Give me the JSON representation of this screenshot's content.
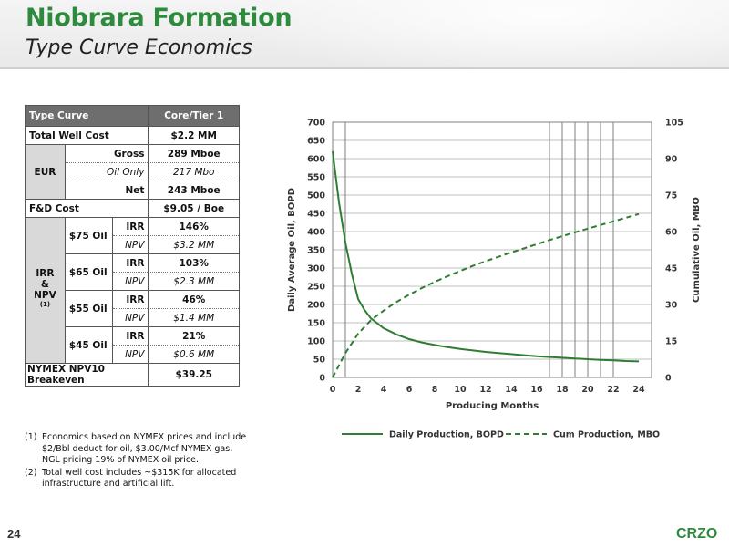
{
  "header": {
    "title": "Niobrara Formation",
    "subtitle": "Type Curve Economics"
  },
  "table": {
    "col1_header": "Type Curve",
    "col2_header": "Core/Tier 1",
    "total_well_cost_label": "Total Well Cost",
    "total_well_cost_value": "$2.2 MM",
    "eur_label": "EUR",
    "eur_rows": [
      {
        "label": "Gross",
        "value": "289 Mboe"
      },
      {
        "label": "Oil Only",
        "value": "217 Mbo"
      },
      {
        "label": "Net",
        "value": "243 Mboe"
      }
    ],
    "fd_label": "F&D Cost",
    "fd_value": "$9.05 / Boe",
    "irr_label_line1": "IRR",
    "irr_label_line2": "&",
    "irr_label_line3": "NPV",
    "irr_label_sup": "(1)",
    "irr_label": "IRR",
    "npv_label": "NPV",
    "scenarios": [
      {
        "price": "$75 Oil",
        "irr": "146%",
        "npv": "$3.2 MM"
      },
      {
        "price": "$65 Oil",
        "irr": "103%",
        "npv": "$2.3 MM"
      },
      {
        "price": "$55 Oil",
        "irr": "46%",
        "npv": "$1.4 MM"
      },
      {
        "price": "$45 Oil",
        "irr": "21%",
        "npv": "$0.6 MM"
      }
    ],
    "breakeven_label": "NYMEX NPV10 Breakeven",
    "breakeven_value": "$39.25"
  },
  "notes": [
    {
      "num": "(1)",
      "text": "Economics based on NYMEX prices and include $2/Bbl deduct for oil, $3.00/Mcf NYMEX gas, NGL pricing 19% of NYMEX oil price."
    },
    {
      "num": "(2)",
      "text": "Total well cost includes ~$315K for allocated infrastructure and artificial lift."
    }
  ],
  "chart_data": {
    "type": "line",
    "title": "",
    "xlabel": "Producing Months",
    "ylabel": "Daily Average Oil, BOPD",
    "y2label": "Cumulative Oil, MBO",
    "xlim": [
      0,
      25
    ],
    "xticks": [
      0,
      2,
      4,
      6,
      8,
      10,
      12,
      14,
      16,
      18,
      20,
      22,
      24
    ],
    "ylim": [
      0,
      700
    ],
    "yticks": [
      0,
      50,
      100,
      150,
      200,
      250,
      300,
      350,
      400,
      450,
      500,
      550,
      600,
      650,
      700
    ],
    "y2lim": [
      0,
      105
    ],
    "y2ticks": [
      0,
      15,
      30,
      45,
      60,
      75,
      90,
      105
    ],
    "vertical_lines_x": [
      1,
      17,
      18,
      19,
      20,
      21,
      22
    ],
    "legend_position": "bottom",
    "series": [
      {
        "name": "Daily Production, BOPD",
        "axis": "left",
        "style": "solid",
        "color": "#2e7d32",
        "x": [
          0,
          0.5,
          1,
          1.5,
          2,
          2.5,
          3,
          4,
          5,
          6,
          7,
          8,
          9,
          10,
          11,
          12,
          13,
          14,
          15,
          16,
          17,
          18,
          19,
          20,
          21,
          22,
          23,
          24
        ],
        "y": [
          620,
          480,
          370,
          285,
          215,
          185,
          162,
          135,
          118,
          105,
          96,
          89,
          83,
          78,
          74,
          70,
          67,
          64,
          61,
          58,
          56,
          54,
          52,
          50,
          48,
          47,
          45,
          44
        ]
      },
      {
        "name": "Cum Production, MBO",
        "axis": "right",
        "style": "dashed",
        "color": "#2e7d32",
        "x": [
          0,
          0.5,
          1,
          2,
          3,
          4,
          5,
          6,
          7,
          8,
          9,
          10,
          11,
          12,
          13,
          14,
          15,
          16,
          17,
          18,
          19,
          20,
          21,
          22,
          23,
          24
        ],
        "y": [
          0,
          5,
          10,
          18,
          23.5,
          27.5,
          31,
          34,
          36.8,
          39.3,
          41.6,
          43.8,
          45.9,
          47.8,
          49.6,
          51.4,
          53.1,
          54.8,
          56.5,
          58.1,
          59.7,
          61.2,
          62.7,
          64.2,
          65.7,
          67.2
        ]
      }
    ]
  },
  "footer": {
    "page_number": "24",
    "logo": "CRZO"
  },
  "colors": {
    "brand_green": "#2e8b3e",
    "series_green": "#2e7d32",
    "table_header": "#6e6e6e",
    "table_shade": "#d9d9d9"
  }
}
